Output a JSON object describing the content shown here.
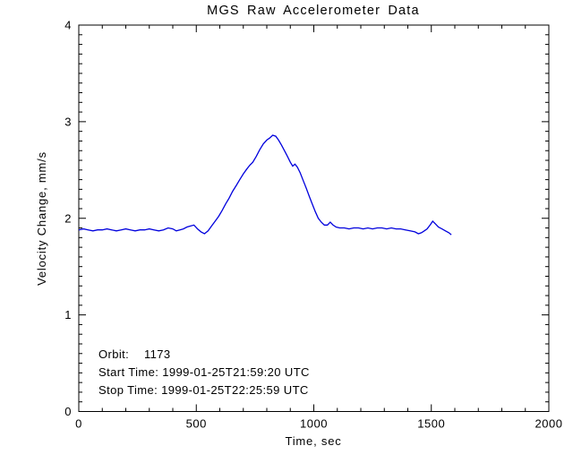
{
  "title": "MGS Raw Accelerometer Data",
  "annotations": {
    "orbit_label": "Orbit:",
    "orbit_value": "1173",
    "start_time": "Start Time: 1999-01-25T21:59:20 UTC",
    "stop_time": "Stop Time: 1999-01-25T22:25:59 UTC"
  },
  "colors": {
    "line": "#0000dd",
    "axis": "#000000",
    "background": "#ffffff",
    "text": "#000000"
  },
  "chart_data": {
    "type": "line",
    "title": "MGS Raw Accelerometer Data",
    "xlabel": "Time, sec",
    "ylabel": "Velocity Change, mm/s",
    "xlim": [
      0,
      2000
    ],
    "ylim": [
      0,
      4
    ],
    "xticks": [
      0,
      500,
      1000,
      1500,
      2000
    ],
    "yticks": [
      0,
      1,
      2,
      3,
      4
    ],
    "x_minor_step": 100,
    "y_minor_step": 0.1,
    "grid": false,
    "legend_position": "none",
    "series": [
      {
        "name": "velocity-change",
        "color": "#0000dd",
        "points": [
          [
            0,
            1.88
          ],
          [
            20,
            1.89
          ],
          [
            40,
            1.88
          ],
          [
            60,
            1.87
          ],
          [
            80,
            1.88
          ],
          [
            100,
            1.88
          ],
          [
            120,
            1.89
          ],
          [
            140,
            1.88
          ],
          [
            160,
            1.87
          ],
          [
            180,
            1.88
          ],
          [
            200,
            1.89
          ],
          [
            220,
            1.88
          ],
          [
            240,
            1.87
          ],
          [
            260,
            1.88
          ],
          [
            280,
            1.88
          ],
          [
            300,
            1.89
          ],
          [
            320,
            1.88
          ],
          [
            340,
            1.87
          ],
          [
            360,
            1.88
          ],
          [
            380,
            1.9
          ],
          [
            400,
            1.89
          ],
          [
            415,
            1.87
          ],
          [
            430,
            1.88
          ],
          [
            445,
            1.89
          ],
          [
            460,
            1.91
          ],
          [
            475,
            1.92
          ],
          [
            490,
            1.93
          ],
          [
            505,
            1.89
          ],
          [
            520,
            1.86
          ],
          [
            535,
            1.84
          ],
          [
            550,
            1.87
          ],
          [
            565,
            1.92
          ],
          [
            580,
            1.97
          ],
          [
            595,
            2.02
          ],
          [
            610,
            2.08
          ],
          [
            625,
            2.15
          ],
          [
            640,
            2.21
          ],
          [
            655,
            2.28
          ],
          [
            670,
            2.34
          ],
          [
            685,
            2.4
          ],
          [
            700,
            2.46
          ],
          [
            715,
            2.51
          ],
          [
            728,
            2.55
          ],
          [
            740,
            2.58
          ],
          [
            755,
            2.64
          ],
          [
            770,
            2.71
          ],
          [
            785,
            2.77
          ],
          [
            800,
            2.81
          ],
          [
            812,
            2.83
          ],
          [
            825,
            2.86
          ],
          [
            838,
            2.85
          ],
          [
            850,
            2.81
          ],
          [
            862,
            2.76
          ],
          [
            875,
            2.7
          ],
          [
            888,
            2.64
          ],
          [
            900,
            2.58
          ],
          [
            910,
            2.54
          ],
          [
            920,
            2.56
          ],
          [
            930,
            2.53
          ],
          [
            942,
            2.47
          ],
          [
            955,
            2.39
          ],
          [
            968,
            2.31
          ],
          [
            980,
            2.23
          ],
          [
            993,
            2.15
          ],
          [
            1006,
            2.07
          ],
          [
            1019,
            2.0
          ],
          [
            1032,
            1.96
          ],
          [
            1045,
            1.93
          ],
          [
            1058,
            1.93
          ],
          [
            1070,
            1.96
          ],
          [
            1082,
            1.93
          ],
          [
            1095,
            1.91
          ],
          [
            1110,
            1.9
          ],
          [
            1130,
            1.9
          ],
          [
            1150,
            1.89
          ],
          [
            1170,
            1.9
          ],
          [
            1190,
            1.9
          ],
          [
            1210,
            1.89
          ],
          [
            1230,
            1.9
          ],
          [
            1250,
            1.89
          ],
          [
            1270,
            1.9
          ],
          [
            1290,
            1.9
          ],
          [
            1310,
            1.89
          ],
          [
            1330,
            1.9
          ],
          [
            1350,
            1.89
          ],
          [
            1370,
            1.89
          ],
          [
            1390,
            1.88
          ],
          [
            1410,
            1.87
          ],
          [
            1430,
            1.86
          ],
          [
            1445,
            1.84
          ],
          [
            1458,
            1.85
          ],
          [
            1470,
            1.87
          ],
          [
            1482,
            1.89
          ],
          [
            1495,
            1.93
          ],
          [
            1506,
            1.97
          ],
          [
            1518,
            1.94
          ],
          [
            1530,
            1.91
          ],
          [
            1545,
            1.89
          ],
          [
            1560,
            1.87
          ],
          [
            1575,
            1.85
          ],
          [
            1585,
            1.83
          ]
        ]
      }
    ]
  }
}
